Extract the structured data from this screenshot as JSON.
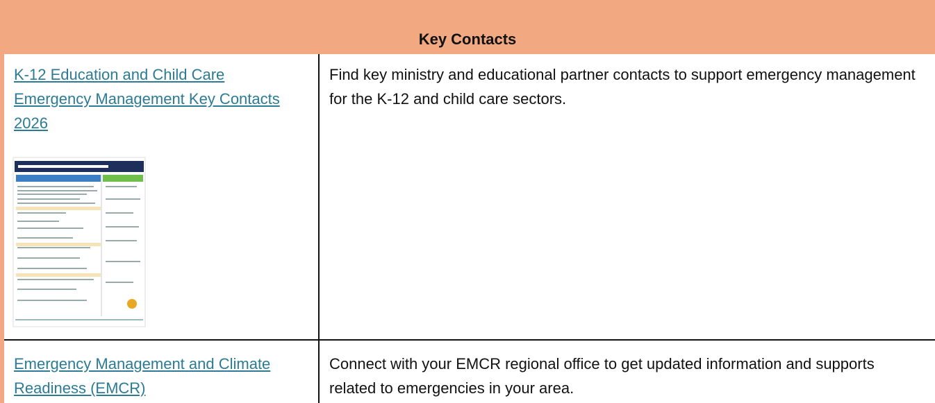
{
  "header": {
    "title": "Key Contacts"
  },
  "table": {
    "rows": [
      [
        "K-12 Education and Child Care Emergency Management Key Contacts 2026",
        "Find key ministry and educational partner contacts to support emergency management for the K-12 and child care sectors."
      ],
      [
        "Emergency Management and Climate Readiness (EMCR)",
        "Connect with your EMCR regional office to get updated information and supports related to emergencies in your area."
      ]
    ]
  }
}
